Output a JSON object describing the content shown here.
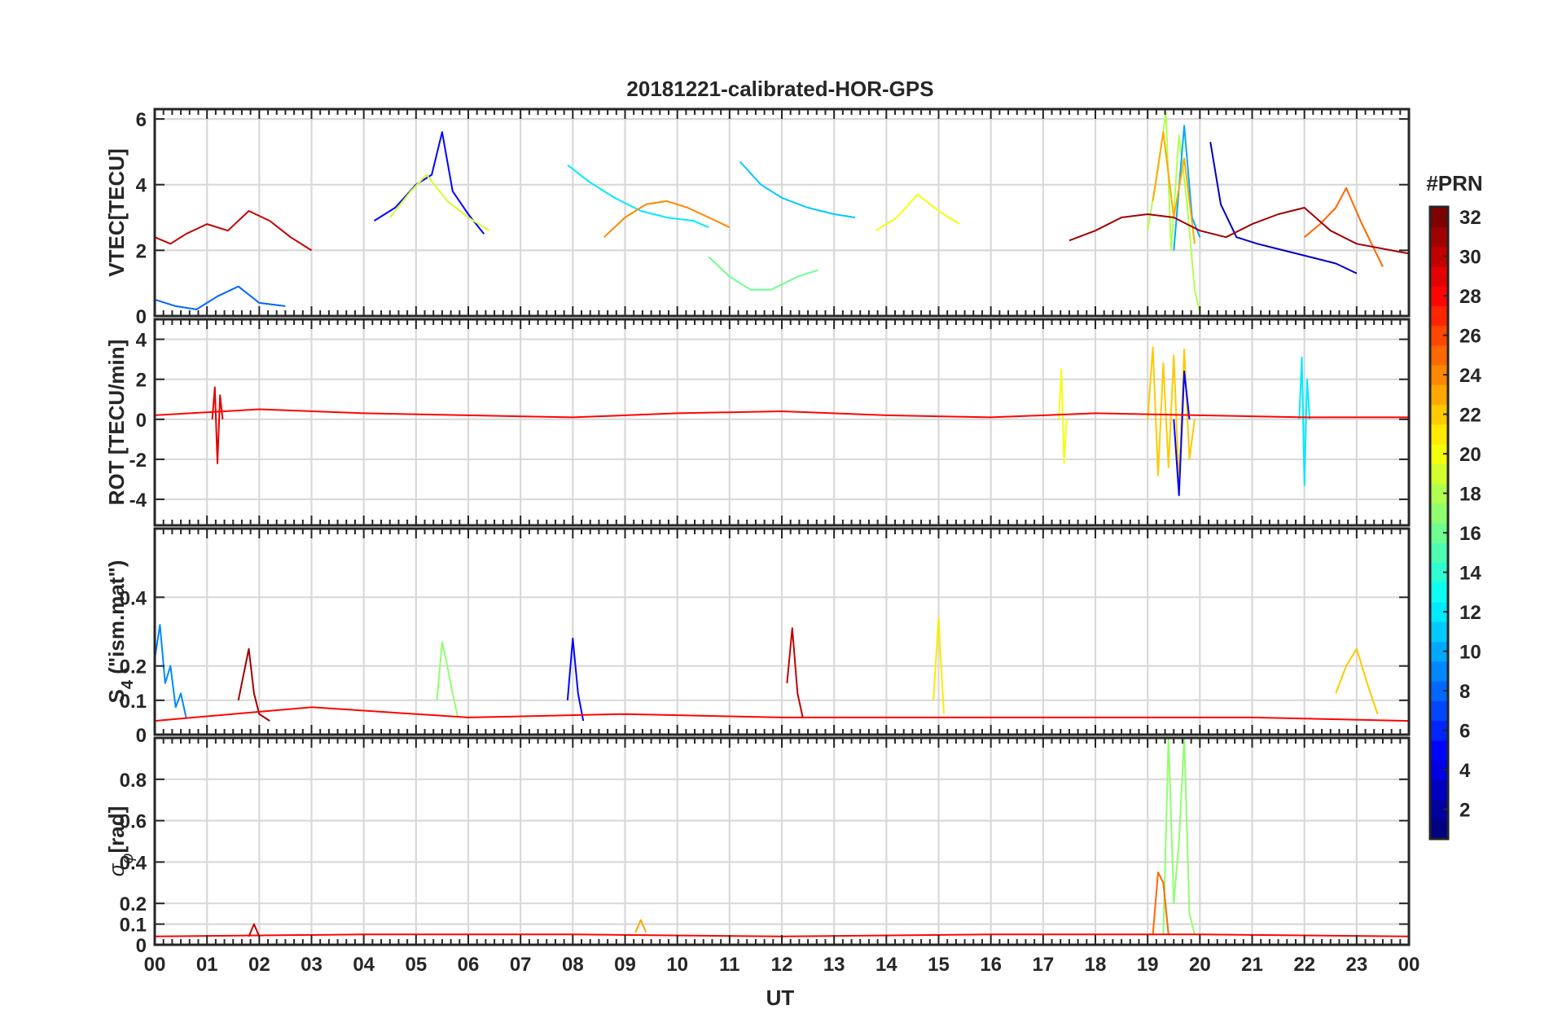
{
  "figure": {
    "title": "20181221-calibrated-HOR-GPS",
    "xlabel": "UT",
    "colorbar": {
      "label": "#PRN",
      "range": [
        1,
        32
      ],
      "ticks": [
        "2",
        "4",
        "6",
        "8",
        "10",
        "12",
        "14",
        "16",
        "18",
        "20",
        "22",
        "24",
        "26",
        "28",
        "30",
        "32"
      ],
      "colormap": "jet"
    }
  },
  "chart_data": [
    {
      "type": "line",
      "panel": "VTEC",
      "ylabel": "VTEC[TECU]",
      "ylim": [
        0,
        6.3
      ],
      "yticks": [
        "0",
        "2",
        "4",
        "6"
      ],
      "xlim": [
        0,
        24
      ],
      "xtick_labels": [
        "00",
        "01",
        "02",
        "03",
        "04",
        "05",
        "06",
        "07",
        "08",
        "09",
        "10",
        "11",
        "12",
        "13",
        "14",
        "15",
        "16",
        "17",
        "18",
        "19",
        "20",
        "21",
        "22",
        "23",
        "00"
      ],
      "grid": true,
      "series": [
        {
          "prn": 30,
          "x": [
            0.0,
            0.3,
            0.6,
            1.0,
            1.4,
            1.8,
            2.2,
            2.6,
            3.0
          ],
          "y": [
            2.4,
            2.2,
            2.5,
            2.8,
            2.6,
            3.2,
            2.9,
            2.4,
            2.0
          ]
        },
        {
          "prn": 5,
          "x": [
            4.2,
            4.6,
            5.0,
            5.3,
            5.5,
            5.7,
            6.0,
            6.3
          ],
          "y": [
            2.9,
            3.3,
            4.0,
            4.3,
            5.6,
            3.8,
            3.1,
            2.5
          ]
        },
        {
          "prn": 19,
          "x": [
            4.5,
            4.9,
            5.2,
            5.6,
            6.0,
            6.4
          ],
          "y": [
            3.0,
            3.8,
            4.3,
            3.5,
            3.0,
            2.6
          ]
        },
        {
          "prn": 12,
          "x": [
            7.9,
            8.3,
            8.8,
            9.3,
            9.8,
            10.3,
            10.6
          ],
          "y": [
            4.6,
            4.1,
            3.6,
            3.2,
            3.0,
            2.9,
            2.7
          ]
        },
        {
          "prn": 11,
          "x": [
            11.2,
            11.6,
            12.0,
            12.5,
            13.0,
            13.4
          ],
          "y": [
            4.7,
            4.0,
            3.6,
            3.3,
            3.1,
            3.0
          ]
        },
        {
          "prn": 24,
          "x": [
            8.6,
            9.0,
            9.4,
            9.8,
            10.2,
            10.6,
            11.0
          ],
          "y": [
            2.4,
            3.0,
            3.4,
            3.5,
            3.3,
            3.0,
            2.7
          ]
        },
        {
          "prn": 20,
          "x": [
            13.8,
            14.2,
            14.6,
            15.0,
            15.4
          ],
          "y": [
            2.6,
            3.0,
            3.7,
            3.2,
            2.8
          ]
        },
        {
          "prn": 18,
          "x": [
            19.0,
            19.2,
            19.35,
            19.45,
            19.6,
            19.75,
            19.9,
            20.0
          ],
          "y": [
            2.6,
            4.5,
            6.2,
            2.0,
            5.5,
            3.5,
            0.8,
            0.1
          ]
        },
        {
          "prn": 10,
          "x": [
            19.5,
            19.7,
            19.85,
            20.0
          ],
          "y": [
            2.0,
            5.8,
            3.0,
            2.4
          ]
        },
        {
          "prn": 23,
          "x": [
            19.1,
            19.3,
            19.5,
            19.7,
            19.9
          ],
          "y": [
            3.5,
            5.6,
            3.0,
            4.8,
            2.2
          ]
        },
        {
          "prn": 3,
          "x": [
            20.2,
            20.4,
            20.7,
            21.1,
            21.6,
            22.1,
            22.6,
            23.0
          ],
          "y": [
            5.3,
            3.4,
            2.4,
            2.2,
            2.0,
            1.8,
            1.6,
            1.3
          ]
        },
        {
          "prn": 25,
          "x": [
            22.0,
            22.3,
            22.6,
            22.8,
            23.1,
            23.5
          ],
          "y": [
            2.4,
            2.8,
            3.3,
            3.9,
            2.8,
            1.5
          ]
        },
        {
          "prn": 31,
          "x": [
            17.5,
            18.0,
            18.5,
            19.0,
            19.5,
            20.0,
            20.5,
            21.0,
            21.5,
            22.0,
            22.5,
            23.0,
            24.0
          ],
          "y": [
            2.3,
            2.6,
            3.0,
            3.1,
            3.0,
            2.6,
            2.4,
            2.8,
            3.1,
            3.3,
            2.6,
            2.2,
            1.9
          ]
        },
        {
          "prn": 16,
          "x": [
            10.6,
            11.0,
            11.4,
            11.8,
            12.3,
            12.7
          ],
          "y": [
            1.8,
            1.2,
            0.8,
            0.8,
            1.2,
            1.4
          ]
        },
        {
          "prn": 8,
          "x": [
            0.0,
            0.4,
            0.8,
            1.2,
            1.6,
            2.0,
            2.5
          ],
          "y": [
            0.5,
            0.3,
            0.2,
            0.6,
            0.9,
            0.4,
            0.3
          ]
        }
      ]
    },
    {
      "type": "line",
      "panel": "ROT",
      "ylabel": "ROT [TECU/min]",
      "ylim": [
        -5.3,
        5.0
      ],
      "yticks": [
        "-4",
        "-2",
        "0",
        "2",
        "4"
      ],
      "xlim": [
        0,
        24
      ],
      "grid": true,
      "series": [
        {
          "prn": 29,
          "x": [
            1.1,
            1.15,
            1.2,
            1.25,
            1.3
          ],
          "y": [
            0.0,
            1.6,
            -2.2,
            1.2,
            0.0
          ]
        },
        {
          "prn": 20,
          "x": [
            17.3,
            17.35,
            17.4,
            17.45
          ],
          "y": [
            0.0,
            2.5,
            -2.2,
            0.0
          ]
        },
        {
          "prn": 22,
          "x": [
            19.0,
            19.1,
            19.2,
            19.3,
            19.4,
            19.5,
            19.6,
            19.7,
            19.8,
            19.9
          ],
          "y": [
            0.0,
            3.6,
            -2.8,
            2.8,
            -2.4,
            3.2,
            -3.3,
            3.5,
            -2.0,
            0.0
          ]
        },
        {
          "prn": 5,
          "x": [
            19.5,
            19.6,
            19.7,
            19.8
          ],
          "y": [
            0.0,
            -3.8,
            2.4,
            0.0
          ]
        },
        {
          "prn": 12,
          "x": [
            21.9,
            21.95,
            22.0,
            22.05,
            22.1
          ],
          "y": [
            0.0,
            3.1,
            -3.3,
            2.0,
            0.0
          ]
        },
        {
          "prn": 28,
          "x": [
            0.0,
            2.0,
            4.0,
            6.0,
            8.0,
            10.0,
            12.0,
            14.0,
            16.0,
            18.0,
            20.0,
            22.0,
            24.0
          ],
          "y": [
            0.2,
            0.5,
            0.3,
            0.2,
            0.1,
            0.3,
            0.4,
            0.2,
            0.1,
            0.3,
            0.2,
            0.1,
            0.1
          ]
        }
      ]
    },
    {
      "type": "line",
      "panel": "S4",
      "ylabel": "S4 (\"ism.mat\")",
      "ylabel_main": "S",
      "ylabel_sub": "4",
      "ylabel_rest": " (\"ism.mat\")",
      "ylim": [
        0,
        0.6
      ],
      "yticks": [
        "0",
        "0.1",
        "0.2",
        "0.4"
      ],
      "xlim": [
        0,
        24
      ],
      "grid": true,
      "series": [
        {
          "prn": 9,
          "x": [
            0.0,
            0.1,
            0.2,
            0.3,
            0.4,
            0.5,
            0.6
          ],
          "y": [
            0.22,
            0.32,
            0.15,
            0.2,
            0.08,
            0.12,
            0.05
          ]
        },
        {
          "prn": 31,
          "x": [
            1.6,
            1.8,
            1.9,
            2.0,
            2.2
          ],
          "y": [
            0.1,
            0.25,
            0.12,
            0.06,
            0.04
          ]
        },
        {
          "prn": 17,
          "x": [
            5.4,
            5.5,
            5.6,
            5.7,
            5.8
          ],
          "y": [
            0.1,
            0.27,
            0.2,
            0.12,
            0.05
          ]
        },
        {
          "prn": 5,
          "x": [
            7.9,
            8.0,
            8.1,
            8.2
          ],
          "y": [
            0.1,
            0.28,
            0.12,
            0.04
          ]
        },
        {
          "prn": 21,
          "x": [
            14.9,
            15.0,
            15.1
          ],
          "y": [
            0.1,
            0.34,
            0.06
          ]
        },
        {
          "prn": 30,
          "x": [
            12.1,
            12.2,
            12.3,
            12.4
          ],
          "y": [
            0.15,
            0.31,
            0.12,
            0.05
          ]
        },
        {
          "prn": 22,
          "x": [
            22.6,
            22.8,
            23.0,
            23.2,
            23.4
          ],
          "y": [
            0.12,
            0.2,
            0.25,
            0.15,
            0.06
          ]
        },
        {
          "prn": 28,
          "x": [
            0.0,
            3.0,
            6.0,
            9.0,
            12.0,
            15.0,
            18.0,
            21.0,
            24.0
          ],
          "y": [
            0.04,
            0.08,
            0.05,
            0.06,
            0.05,
            0.05,
            0.05,
            0.05,
            0.04
          ]
        }
      ]
    },
    {
      "type": "line",
      "panel": "sigma_phi",
      "ylabel": "σφ[rad]",
      "ylabel_main": "σ",
      "ylabel_sub": "φ",
      "ylabel_rest": "[rad]",
      "ylim": [
        0,
        1.0
      ],
      "yticks": [
        "0",
        "0.1",
        "0.2",
        "0.4",
        "0.6",
        "0.8"
      ],
      "xlim": [
        0,
        24
      ],
      "grid": true,
      "series": [
        {
          "prn": 17,
          "x": [
            19.3,
            19.4,
            19.5,
            19.6,
            19.7,
            19.8,
            19.9
          ],
          "y": [
            0.05,
            1.0,
            0.2,
            0.5,
            1.0,
            0.15,
            0.05
          ]
        },
        {
          "prn": 25,
          "x": [
            19.1,
            19.2,
            19.3,
            19.4
          ],
          "y": [
            0.05,
            0.35,
            0.3,
            0.05
          ]
        },
        {
          "prn": 23,
          "x": [
            9.2,
            9.3,
            9.4
          ],
          "y": [
            0.06,
            0.12,
            0.06
          ]
        },
        {
          "prn": 30,
          "x": [
            1.8,
            1.9,
            2.0
          ],
          "y": [
            0.04,
            0.1,
            0.04
          ]
        },
        {
          "prn": 28,
          "x": [
            0.0,
            4.0,
            8.0,
            12.0,
            16.0,
            20.0,
            24.0
          ],
          "y": [
            0.04,
            0.05,
            0.05,
            0.04,
            0.05,
            0.05,
            0.04
          ]
        }
      ]
    }
  ]
}
